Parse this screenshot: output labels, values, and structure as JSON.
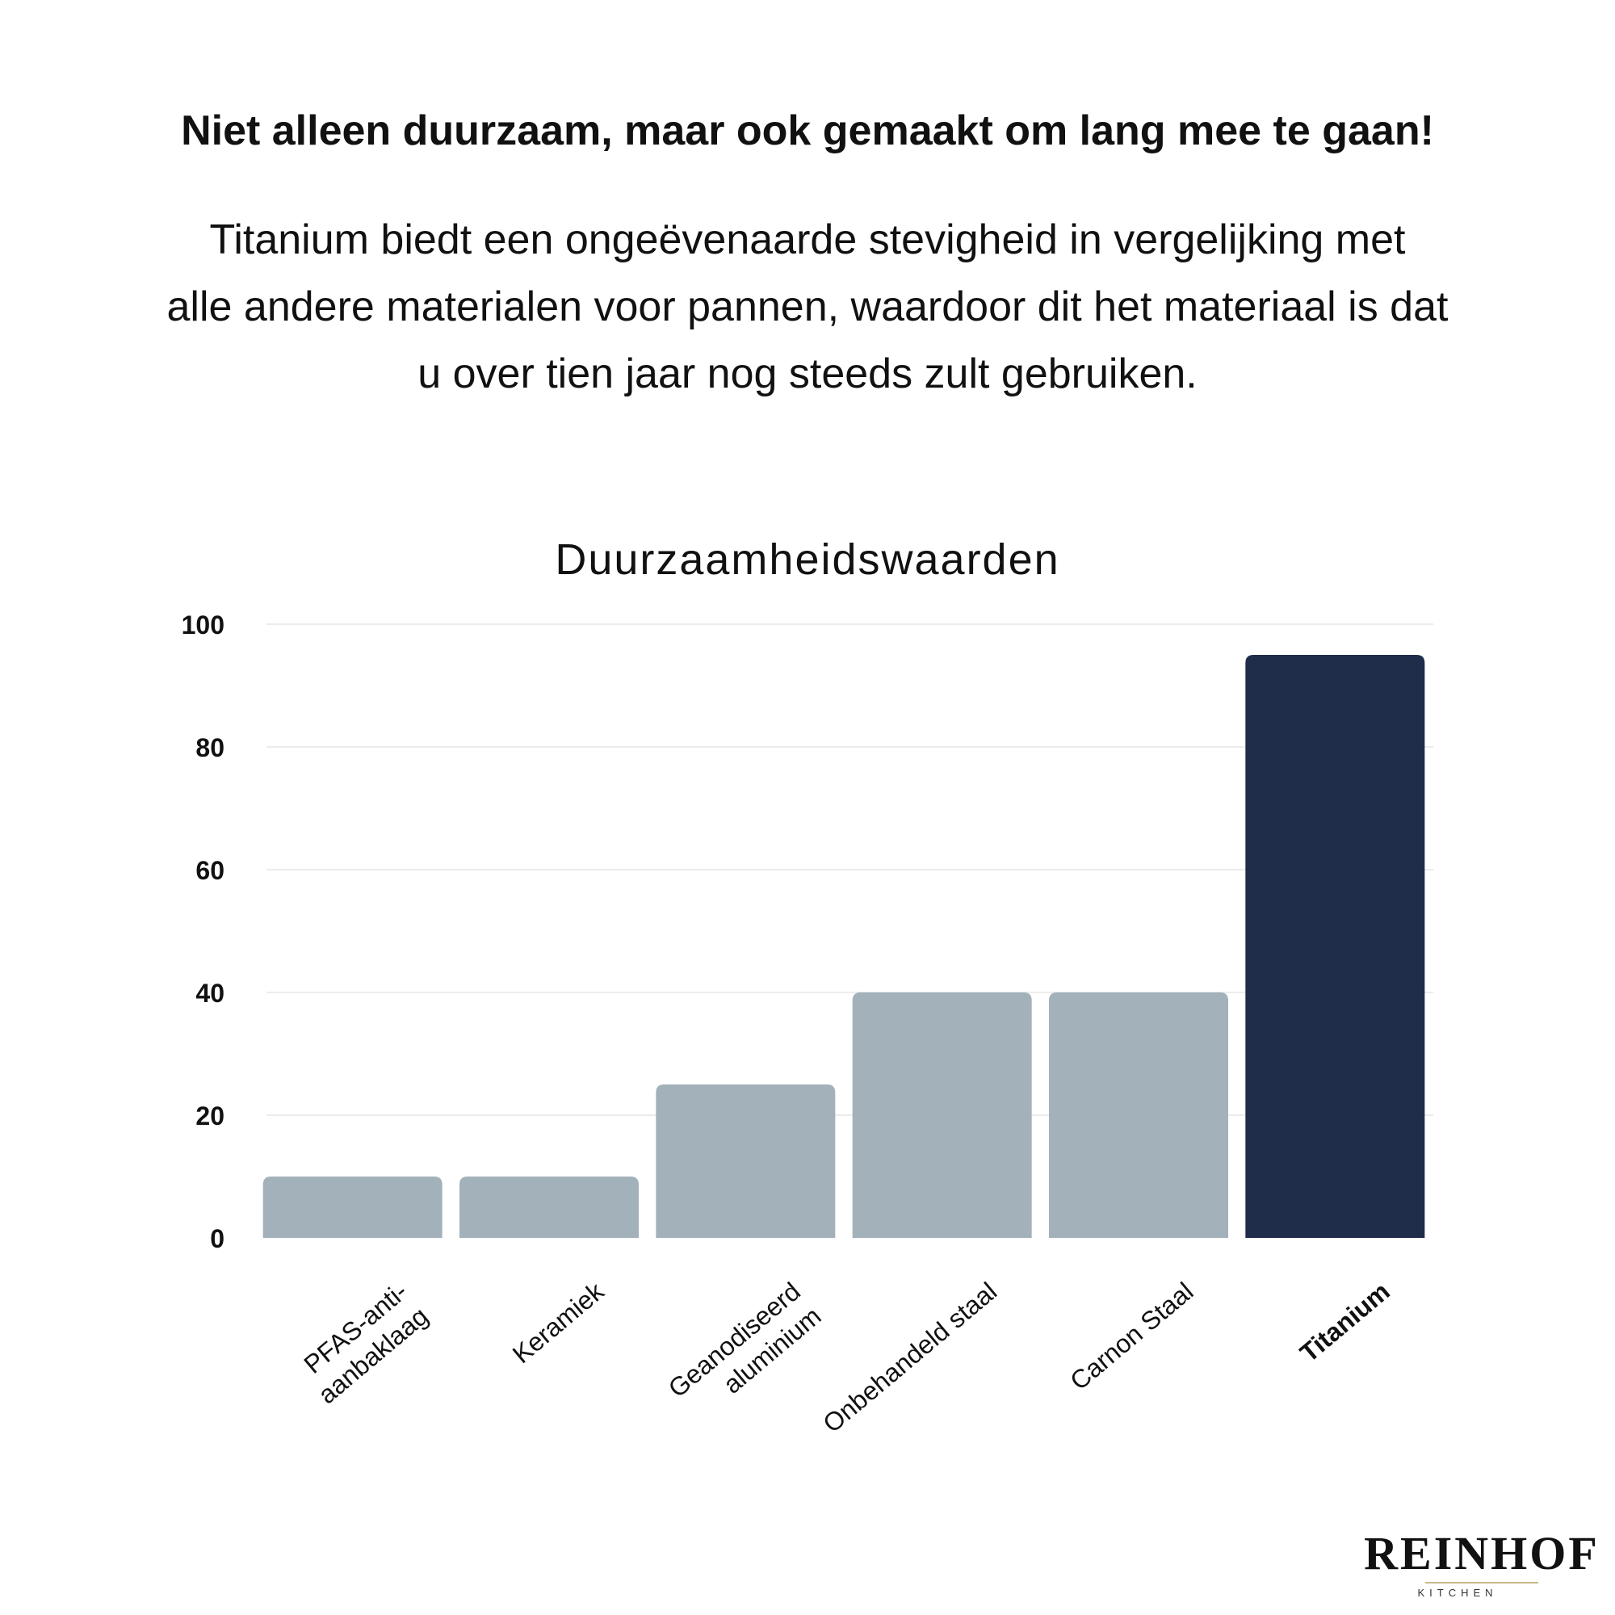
{
  "header": {
    "headline": "Niet alleen duurzaam, maar ook gemaakt om lang mee te gaan!",
    "intro_lines": [
      "Titanium biedt een ongeëvenaarde stevigheid in vergelijking met",
      "alle andere materialen voor pannen, waardoor dit het materiaal is dat",
      "u over tien jaar nog steeds zult gebruiken."
    ]
  },
  "chart_data": {
    "type": "bar",
    "title": "Duurzaamheidswaarden",
    "xlabel": "",
    "ylabel": "",
    "ylim": [
      0,
      100
    ],
    "yticks": [
      0,
      20,
      40,
      60,
      80,
      100
    ],
    "grid": true,
    "categories": [
      [
        "PFAS-anti-",
        "aanbaklaag"
      ],
      [
        "Keramiek"
      ],
      [
        "Geanodiseerd",
        "aluminium"
      ],
      [
        "Onbehandeld staal"
      ],
      [
        "Carnon Staal"
      ],
      [
        "Titanium"
      ]
    ],
    "values": [
      10,
      10,
      25,
      40,
      40,
      95
    ],
    "highlight_index": 5,
    "colors": {
      "bar": "#a3b1ba",
      "highlight": "#1f2d4a",
      "grid": "#ececec",
      "text": "#111111"
    }
  },
  "brand": {
    "name": "REINHOF",
    "sub": "KITCHEN"
  }
}
